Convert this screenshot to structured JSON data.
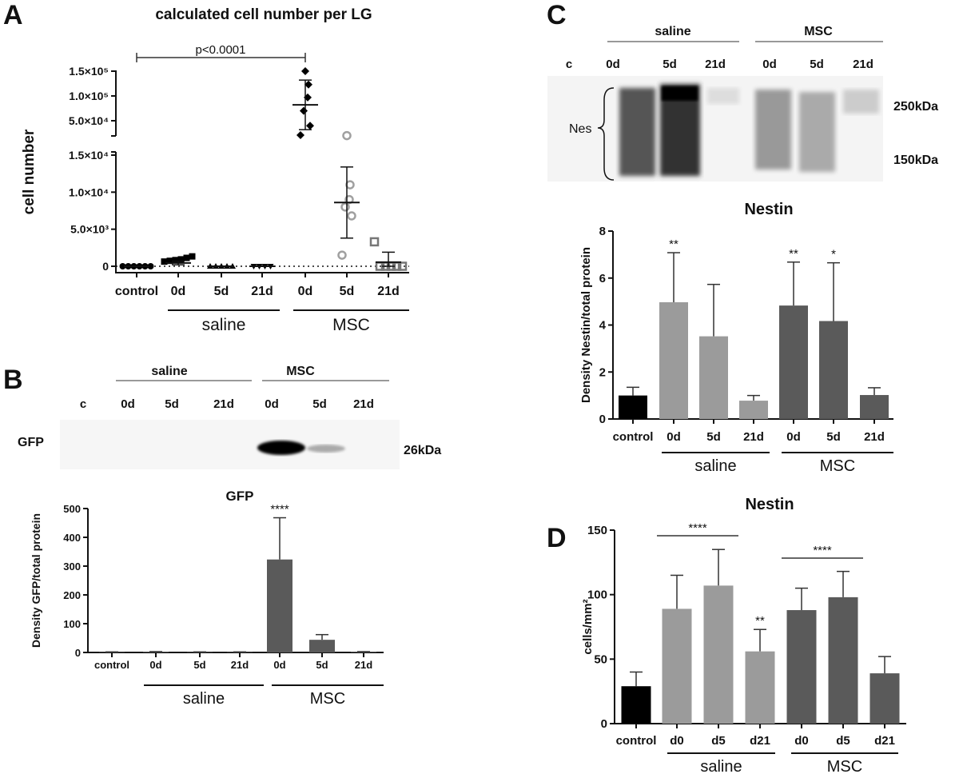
{
  "panels": {
    "A": {
      "letter": "A"
    },
    "B": {
      "letter": "B",
      "blot": {
        "groups": [
          "saline",
          "MSC"
        ],
        "lanes": [
          "c",
          "0d",
          "5d",
          "21d",
          "0d",
          "5d",
          "21d"
        ],
        "row_label": "GFP",
        "marker": "26kDa"
      }
    },
    "C": {
      "letter": "C",
      "blot": {
        "groups": [
          "saline",
          "MSC"
        ],
        "lanes": [
          "c",
          "0d",
          "5d",
          "21d",
          "0d",
          "5d",
          "21d"
        ],
        "row_label": "Nes",
        "markers": [
          "250kDa",
          "150kDa"
        ]
      }
    },
    "D": {
      "letter": "D"
    }
  },
  "colors": {
    "control": "#000000",
    "saline": "#9b9b9b",
    "msc": "#5a5a5a",
    "msc_21d_points": "#777777",
    "msc_5d_points": "#a0a0a0"
  },
  "chart_data": [
    {
      "panel": "A",
      "type": "scatter",
      "title": "calculated cell number per LG",
      "ylabel": "cell number",
      "categories": [
        "control",
        "0d",
        "5d",
        "21d",
        "0d",
        "5d",
        "21d"
      ],
      "groups": [
        {
          "label": "saline",
          "categories": [
            1,
            2,
            3
          ]
        },
        {
          "label": "MSC",
          "categories": [
            4,
            5,
            6
          ]
        }
      ],
      "y_axis": "broken",
      "lower_ylim": [
        0,
        15000
      ],
      "upper_ylim": [
        20000,
        150000
      ],
      "yticks_lower": [
        "0",
        "5.0×10³",
        "1.0×10⁴",
        "1.5×10⁴"
      ],
      "yticks_upper": [
        "5.0×10⁴",
        "1.0×10⁵",
        "1.5×10⁵"
      ],
      "annotation": "p<0.0001",
      "annotation_between": [
        "control",
        "MSC 0d"
      ],
      "series": [
        {
          "category": "control",
          "marker": "circle-filled",
          "points": [
            0,
            0,
            0,
            0,
            0,
            0
          ],
          "mean": 0,
          "sd": 0
        },
        {
          "category": "saline 0d",
          "marker": "square-filled",
          "points": [
            200,
            300,
            400,
            500,
            700,
            900
          ],
          "mean": 450,
          "sd": 250
        },
        {
          "category": "saline 5d",
          "marker": "triangle-filled",
          "points": [
            0,
            0,
            0,
            0,
            0
          ],
          "mean": 0,
          "sd": 0
        },
        {
          "category": "saline 21d",
          "marker": "triangle-down-filled",
          "points": [
            0,
            0,
            0,
            0
          ],
          "mean": 0,
          "sd": 0
        },
        {
          "category": "MSC 0d",
          "marker": "diamond-filled",
          "points": [
            150000,
            123000,
            97000,
            70000,
            40000,
            21000
          ],
          "mean": 82000,
          "sd": 50000
        },
        {
          "category": "MSC 5d",
          "marker": "circle-open",
          "points": [
            15800,
            11000,
            9000,
            8000,
            6800,
            1500
          ],
          "mean": 8600,
          "sd": 4800
        },
        {
          "category": "MSC 21d",
          "marker": "square-open",
          "points": [
            3300,
            0,
            0,
            0,
            0,
            0
          ],
          "mean": 550,
          "sd": 1350
        }
      ]
    },
    {
      "panel": "B",
      "type": "bar",
      "title": "GFP",
      "ylabel": "Density GFP/total protein",
      "ylim": [
        0,
        500
      ],
      "yticks": [
        0,
        100,
        200,
        300,
        400,
        500
      ],
      "categories": [
        "control",
        "0d",
        "5d",
        "21d",
        "0d",
        "5d",
        "21d"
      ],
      "groups": [
        {
          "label": "saline",
          "categories": [
            1,
            2,
            3
          ]
        },
        {
          "label": "MSC",
          "categories": [
            4,
            5,
            6
          ]
        }
      ],
      "values": [
        1,
        2,
        1,
        1,
        323,
        44,
        2
      ],
      "error_upper": [
        2,
        3,
        2,
        2,
        468,
        62,
        3
      ],
      "bar_colors": [
        "msc",
        "msc",
        "msc",
        "msc",
        "msc",
        "msc",
        "msc"
      ],
      "significance": [
        "",
        "",
        "",
        "",
        "****",
        "",
        ""
      ]
    },
    {
      "panel": "C",
      "type": "bar",
      "title": "Nestin",
      "ylabel": "Density Nestin/total protein",
      "ylim": [
        0,
        8
      ],
      "yticks": [
        0,
        2,
        4,
        6,
        8
      ],
      "categories": [
        "control",
        "0d",
        "5d",
        "21d",
        "0d",
        "5d",
        "21d"
      ],
      "groups": [
        {
          "label": "saline",
          "categories": [
            1,
            2,
            3
          ]
        },
        {
          "label": "MSC",
          "categories": [
            4,
            5,
            6
          ]
        }
      ],
      "values": [
        1.0,
        4.97,
        3.52,
        0.78,
        4.83,
        4.17,
        1.02
      ],
      "error_upper": [
        1.35,
        7.08,
        5.73,
        1.0,
        6.68,
        6.65,
        1.33
      ],
      "bar_colors": [
        "control",
        "saline",
        "saline",
        "saline",
        "msc",
        "msc",
        "msc"
      ],
      "significance": [
        "",
        "**",
        "",
        "",
        "**",
        "*",
        ""
      ]
    },
    {
      "panel": "D",
      "type": "bar",
      "title": "Nestin",
      "ylabel": "cells/mm²",
      "ylim": [
        0,
        150
      ],
      "yticks": [
        0,
        50,
        100,
        150
      ],
      "categories": [
        "control",
        "d0",
        "d5",
        "d21",
        "d0",
        "d5",
        "d21"
      ],
      "groups": [
        {
          "label": "saline",
          "categories": [
            1,
            2,
            3
          ]
        },
        {
          "label": "MSC",
          "categories": [
            4,
            5,
            6
          ]
        }
      ],
      "values": [
        29,
        89,
        107,
        56,
        88,
        98,
        39
      ],
      "error_upper": [
        40,
        115,
        135,
        73,
        105,
        118,
        52
      ],
      "bar_colors": [
        "control",
        "saline",
        "saline",
        "saline",
        "msc",
        "msc",
        "msc"
      ],
      "significance": [
        "",
        "",
        "",
        "**",
        "",
        "",
        ""
      ],
      "brackets": [
        {
          "label": "****",
          "from": 1,
          "to": 2
        },
        {
          "label": "****",
          "from": 4,
          "to": 5
        }
      ]
    }
  ]
}
